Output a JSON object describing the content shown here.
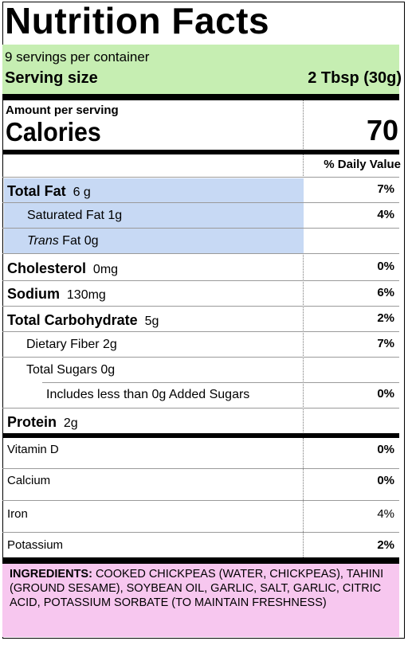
{
  "label": {
    "title": "Nutrition Facts",
    "servings_per_container": "9 servings per container",
    "serving_size_label": "Serving size",
    "serving_size_value": "2 Tbsp (30g)",
    "amount_per_serving": "Amount per serving",
    "calories_label": "Calories",
    "calories_value": "70",
    "daily_value_header": "% Daily Value",
    "nutrients": [
      {
        "name": "Total Fat",
        "amount": "6 g",
        "dv": "7%"
      },
      {
        "name": "Saturated Fat 1g",
        "dv": "4%"
      },
      {
        "italic": "Trans",
        "name": " Fat 0g",
        "dv": ""
      },
      {
        "name": "Cholesterol",
        "amount": "0mg",
        "dv": "0%"
      },
      {
        "name": "Sodium",
        "amount": "130mg",
        "dv": "6%"
      },
      {
        "name": "Total Carbohydrate",
        "amount": "5g",
        "dv": "2%"
      },
      {
        "name": "Dietary Fiber 2g",
        "dv": "7%"
      },
      {
        "name": "Total Sugars 0g",
        "dv": ""
      },
      {
        "name": "Includes less than 0g Added Sugars",
        "dv": "0%"
      },
      {
        "name": "Protein",
        "amount": "2g",
        "dv": ""
      }
    ],
    "vitamins": [
      {
        "name": "Vitamin D",
        "dv": "0%"
      },
      {
        "name": "Calcium",
        "dv": "0%"
      },
      {
        "name": "Iron",
        "dv": "4%"
      },
      {
        "name": "Potassium",
        "dv": "2%"
      }
    ],
    "ingredients_label": "INGREDIENTS:",
    "ingredients_text": "COOKED CHICKPEAS (WATER, CHICKPEAS), TAHINI (GROUND SESAME), SOYBEAN OIL, GARLIC, SALT, GARLIC, CITRIC ACID, POTASSIUM SORBATE (TO MAINTAIN FRESHNESS)"
  },
  "colors": {
    "serving_highlight": "#c6eeb2",
    "fat_highlight": "#c7d9f4",
    "ingredients_highlight": "#f7c7ef"
  }
}
